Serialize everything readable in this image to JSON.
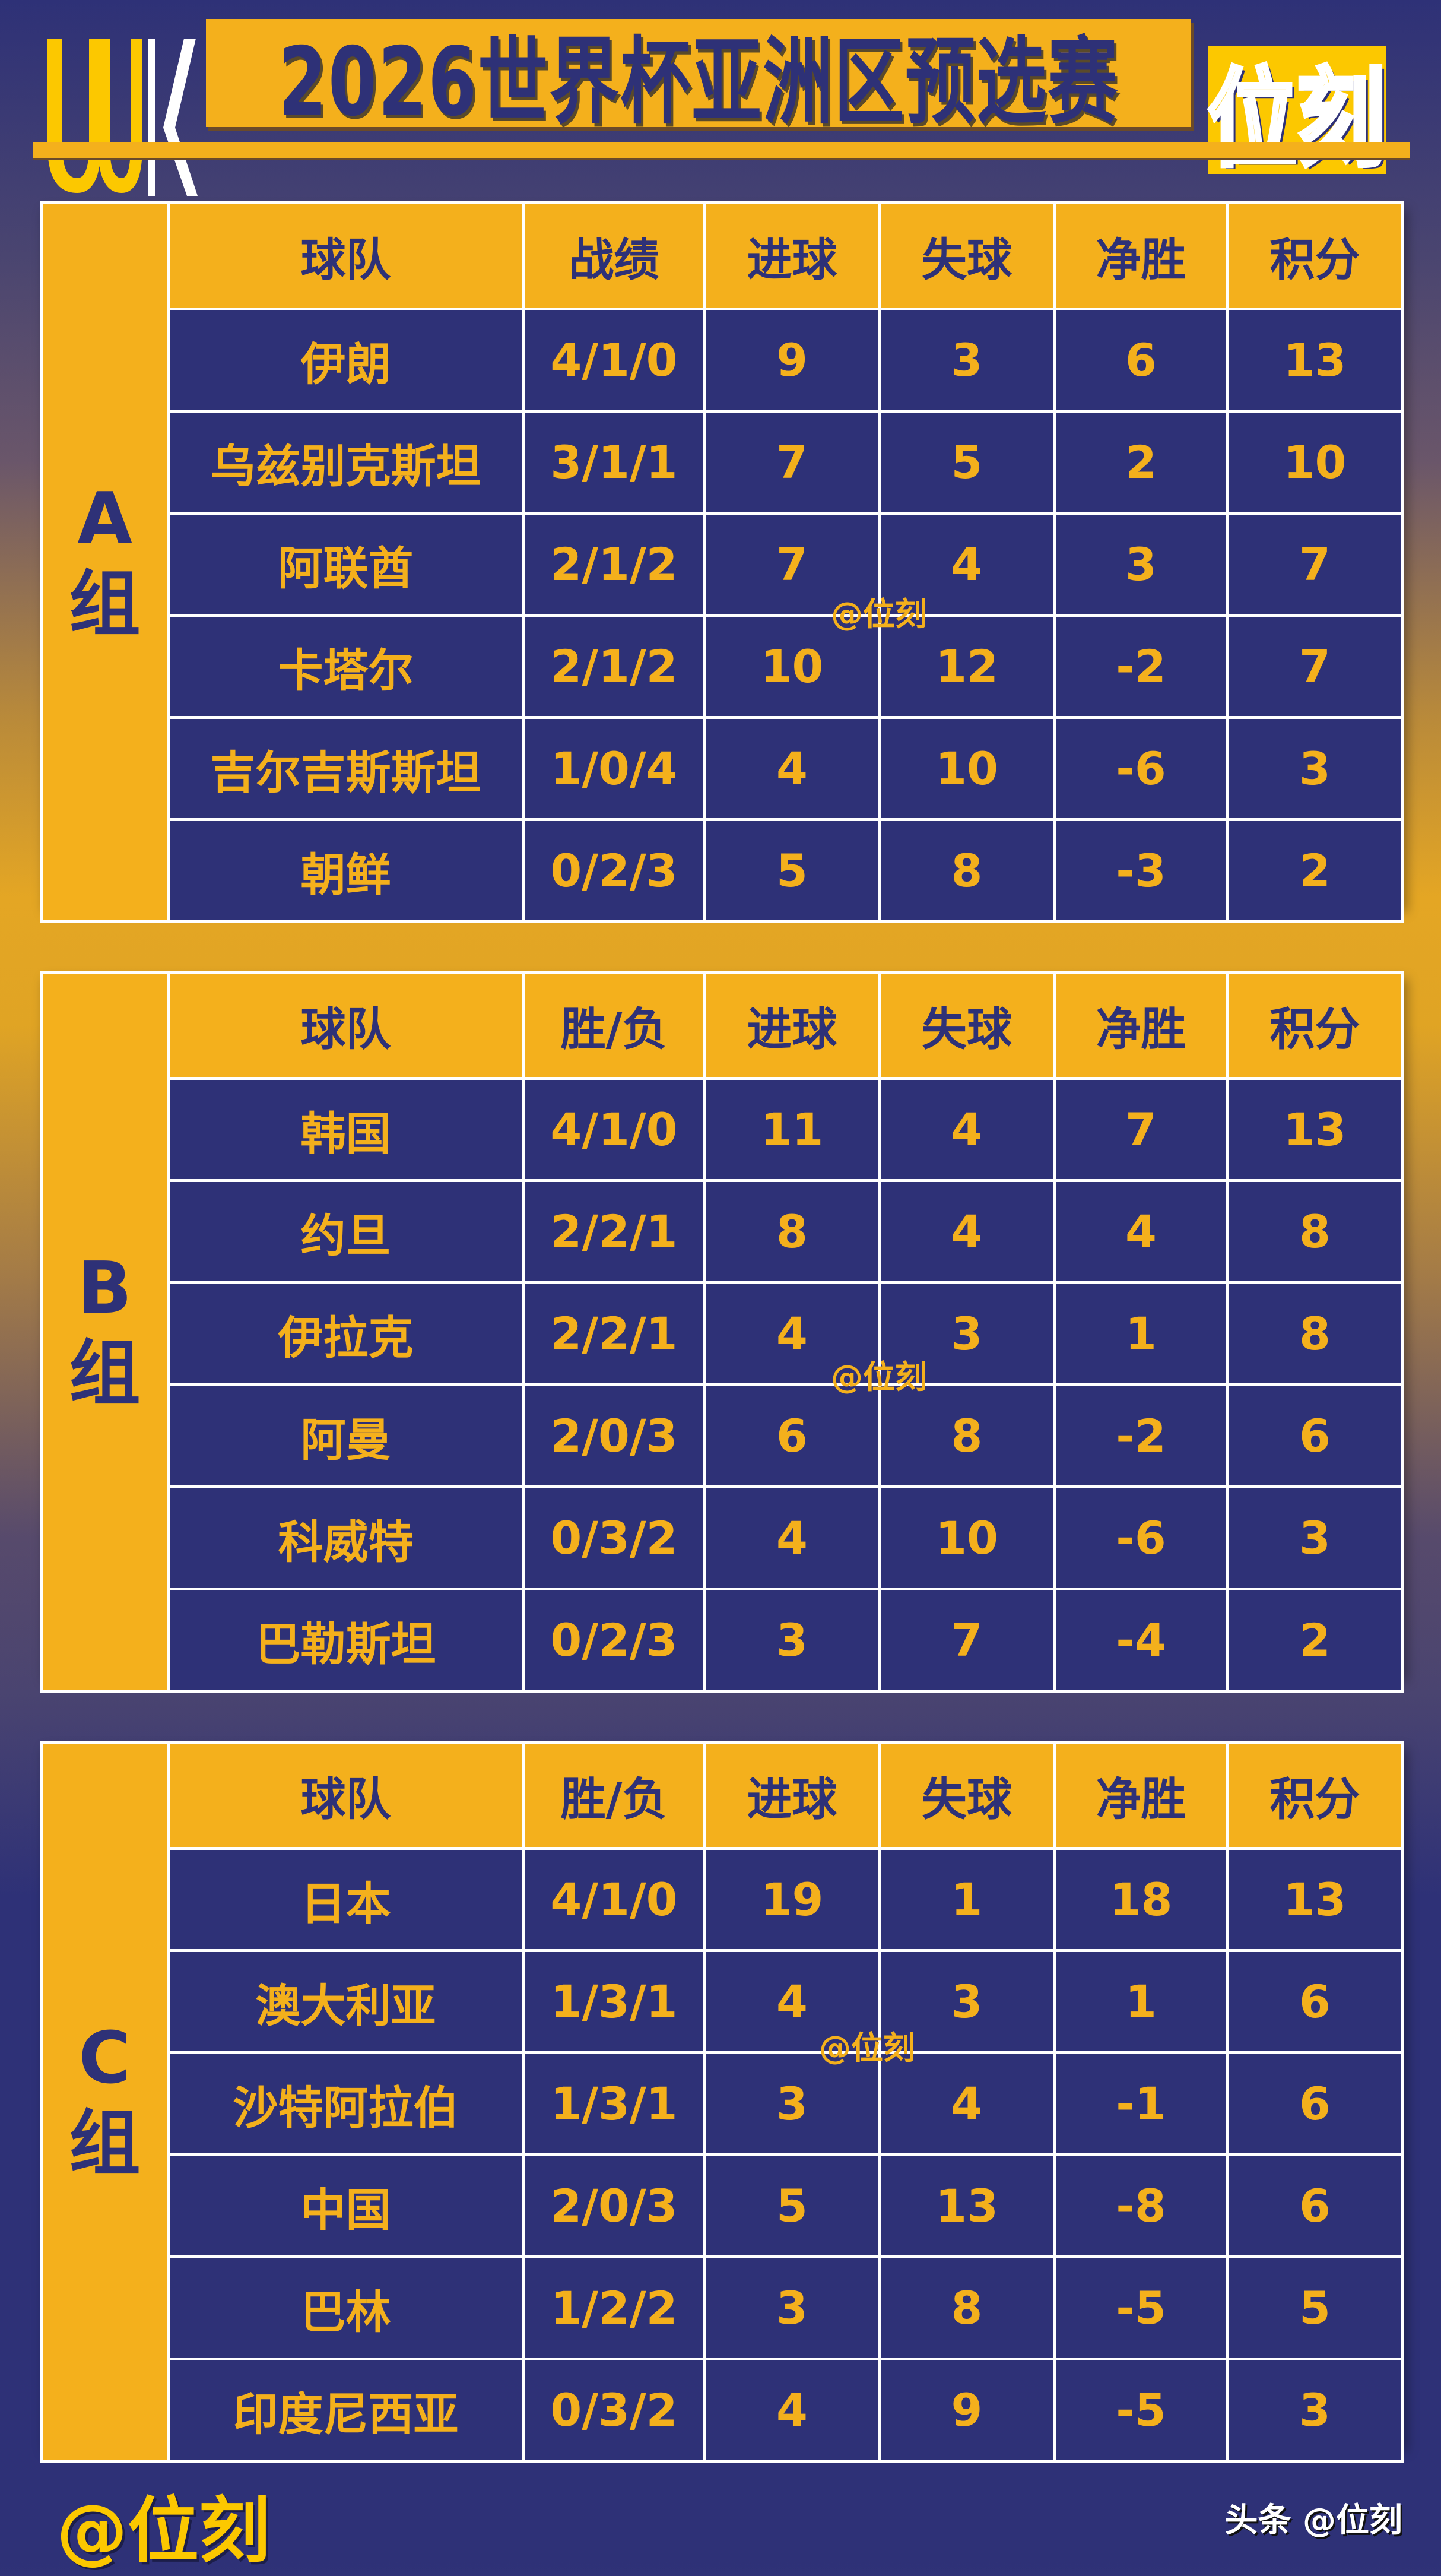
{
  "header": {
    "title": "2026世界杯亚洲区预选赛",
    "logo_left": "UUK",
    "logo_right": "位刻"
  },
  "colors": {
    "navy": "#2e3177",
    "gold": "#f4b01c",
    "white": "#ffffff"
  },
  "groups": [
    {
      "label": "A组",
      "watermark": "@位刻",
      "columns": [
        "球队",
        "战绩",
        "进球",
        "失球",
        "净胜",
        "积分"
      ],
      "rows": [
        [
          "伊朗",
          "4/1/0",
          "9",
          "3",
          "6",
          "13"
        ],
        [
          "乌兹别克斯坦",
          "3/1/1",
          "7",
          "5",
          "2",
          "10"
        ],
        [
          "阿联酋",
          "2/1/2",
          "7",
          "4",
          "3",
          "7"
        ],
        [
          "卡塔尔",
          "2/1/2",
          "10",
          "12",
          "-2",
          "7"
        ],
        [
          "吉尔吉斯斯坦",
          "1/0/4",
          "4",
          "10",
          "-6",
          "3"
        ],
        [
          "朝鲜",
          "0/2/3",
          "5",
          "8",
          "-3",
          "2"
        ]
      ]
    },
    {
      "label": "B组",
      "watermark": "@位刻",
      "columns": [
        "球队",
        "胜/负",
        "进球",
        "失球",
        "净胜",
        "积分"
      ],
      "rows": [
        [
          "韩国",
          "4/1/0",
          "11",
          "4",
          "7",
          "13"
        ],
        [
          "约旦",
          "2/2/1",
          "8",
          "4",
          "4",
          "8"
        ],
        [
          "伊拉克",
          "2/2/1",
          "4",
          "3",
          "1",
          "8"
        ],
        [
          "阿曼",
          "2/0/3",
          "6",
          "8",
          "-2",
          "6"
        ],
        [
          "科威特",
          "0/3/2",
          "4",
          "10",
          "-6",
          "3"
        ],
        [
          "巴勒斯坦",
          "0/2/3",
          "3",
          "7",
          "-4",
          "2"
        ]
      ]
    },
    {
      "label": "C组",
      "watermark": "@位刻",
      "columns": [
        "球队",
        "胜/负",
        "进球",
        "失球",
        "净胜",
        "积分"
      ],
      "rows": [
        [
          "日本",
          "4/1/0",
          "19",
          "1",
          "18",
          "13"
        ],
        [
          "澳大利亚",
          "1/3/1",
          "4",
          "3",
          "1",
          "6"
        ],
        [
          "沙特阿拉伯",
          "1/3/1",
          "3",
          "4",
          "-1",
          "6"
        ],
        [
          "中国",
          "2/0/3",
          "5",
          "13",
          "-8",
          "6"
        ],
        [
          "巴林",
          "1/2/2",
          "3",
          "8",
          "-5",
          "5"
        ],
        [
          "印度尼西亚",
          "0/3/2",
          "4",
          "9",
          "-5",
          "3"
        ]
      ]
    }
  ],
  "footer": {
    "left": "@位刻",
    "right": "头条 @位刻"
  }
}
